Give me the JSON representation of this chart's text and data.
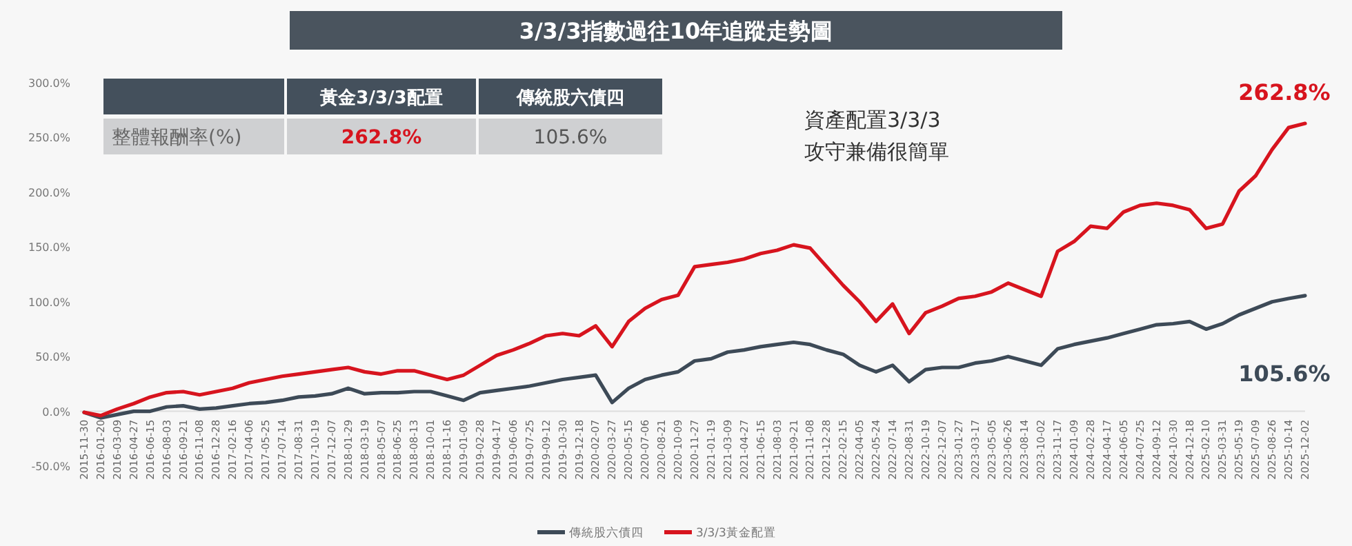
{
  "chart_data": {
    "type": "line",
    "title": "3/3/3指數過往10年追蹤走勢圖",
    "categories": [
      "2015-11-30",
      "2016-01-20",
      "2016-03-09",
      "2016-04-27",
      "2016-06-15",
      "2016-08-03",
      "2016-09-21",
      "2016-11-08",
      "2016-12-28",
      "2017-02-16",
      "2017-04-06",
      "2017-05-25",
      "2017-07-14",
      "2017-08-31",
      "2017-10-19",
      "2017-12-07",
      "2018-01-29",
      "2018-03-19",
      "2018-05-07",
      "2018-06-25",
      "2018-08-13",
      "2018-10-01",
      "2018-11-16",
      "2019-01-09",
      "2019-02-28",
      "2019-04-17",
      "2019-06-06",
      "2019-07-25",
      "2019-09-12",
      "2019-10-30",
      "2019-12-18",
      "2020-02-07",
      "2020-03-27",
      "2020-05-15",
      "2020-07-06",
      "2020-08-21",
      "2020-10-09",
      "2020-11-27",
      "2021-01-19",
      "2021-03-09",
      "2021-04-27",
      "2021-06-15",
      "2021-08-03",
      "2021-09-21",
      "2021-11-08",
      "2021-12-28",
      "2022-02-15",
      "2022-04-05",
      "2022-05-24",
      "2022-07-14",
      "2022-08-31",
      "2022-10-19",
      "2022-12-07",
      "2023-01-27",
      "2023-03-17",
      "2023-05-05",
      "2023-06-26",
      "2023-08-14",
      "2023-10-02",
      "2023-11-17",
      "2024-01-09",
      "2024-02-28",
      "2024-04-17",
      "2024-06-05",
      "2024-07-25",
      "2024-09-12",
      "2024-10-30",
      "2024-12-18",
      "2025-02-10",
      "2025-03-31",
      "2025-05-19",
      "2025-07-09",
      "2025-08-26",
      "2025-10-14",
      "2025-12-02"
    ],
    "series": [
      {
        "name": "傳統股六債四",
        "color": "#3d4a57",
        "values": [
          -1,
          -6,
          -3,
          0,
          0,
          4,
          5,
          2,
          3,
          5,
          7,
          8,
          10,
          13,
          14,
          16,
          21,
          16,
          17,
          17,
          18,
          18,
          14,
          10,
          17,
          19,
          21,
          23,
          26,
          29,
          31,
          33,
          8,
          21,
          29,
          33,
          36,
          46,
          48,
          54,
          56,
          59,
          61,
          63,
          61,
          56,
          52,
          42,
          36,
          42,
          27,
          38,
          40,
          40,
          44,
          46,
          50,
          46,
          42,
          57,
          61,
          64,
          67,
          71,
          75,
          79,
          80,
          82,
          75,
          80,
          88,
          94,
          100,
          103,
          105.6
        ]
      },
      {
        "name": "3/3/3黃金配置",
        "color": "#d7141e",
        "values": [
          -1,
          -4,
          2,
          7,
          13,
          17,
          18,
          15,
          18,
          21,
          26,
          29,
          32,
          34,
          36,
          38,
          40,
          36,
          34,
          37,
          37,
          33,
          29,
          33,
          42,
          51,
          56,
          62,
          69,
          71,
          69,
          78,
          59,
          82,
          94,
          102,
          106,
          132,
          134,
          136,
          139,
          144,
          147,
          152,
          149,
          132,
          115,
          100,
          82,
          98,
          71,
          90,
          96,
          103,
          105,
          109,
          117,
          111,
          105,
          146,
          155,
          169,
          167,
          182,
          188,
          190,
          188,
          184,
          167,
          171,
          201,
          215,
          239,
          259,
          262.8
        ]
      }
    ],
    "ylim": [
      -50,
      300
    ],
    "yticks": [
      {
        "value": -50,
        "label": "-50.0%"
      },
      {
        "value": 0,
        "label": "0.0%"
      },
      {
        "value": 50,
        "label": "50.0%"
      },
      {
        "value": 100,
        "label": "100.0%"
      },
      {
        "value": 150,
        "label": "150.0%"
      },
      {
        "value": 200,
        "label": "200.0%"
      },
      {
        "value": 250,
        "label": "250.0%"
      },
      {
        "value": 300,
        "label": "300.0%"
      }
    ],
    "legend": "bottom",
    "annotations": [
      "黃金3/3/3配置",
      "傳統股六債四",
      "整體報酬率(%)",
      "262.8%",
      "105.6%",
      "資產配置3/3/3",
      "攻守兼備很簡單",
      {
        "text": "262.8%",
        "x": "2025-12-02",
        "y": 262.8
      },
      {
        "text": "105.6%",
        "x": "2025-12-02",
        "y": 105.6
      }
    ]
  }
}
